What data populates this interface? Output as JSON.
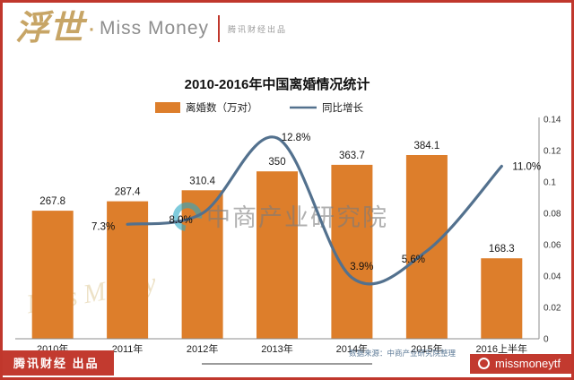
{
  "header": {
    "logo_cn": "浮世",
    "logo_sep": "·",
    "logo_en": "Miss Money",
    "tagline": "腾讯财经出品"
  },
  "chart_data": {
    "type": "bar+line",
    "title": "2010-2016年中国离婚情况统计",
    "categories": [
      "2010年",
      "2011年",
      "2012年",
      "2013年",
      "2014年",
      "2015年",
      "2016上半年"
    ],
    "series": [
      {
        "name": "离婚数（万对）",
        "type": "bar",
        "color": "#DD7E2B",
        "values": [
          267.8,
          287.4,
          310.4,
          350,
          363.7,
          384.1,
          168.3
        ],
        "value_labels": [
          "267.8",
          "287.4",
          "310.4",
          "350",
          "363.7",
          "384.1",
          "168.3"
        ]
      },
      {
        "name": "同比增长",
        "type": "line",
        "color": "#53718E",
        "categories": [
          "2011年",
          "2012年",
          "2013年",
          "2014年",
          "2015年",
          "2016上半年"
        ],
        "values": [
          0.073,
          0.08,
          0.128,
          0.039,
          0.056,
          0.11
        ],
        "value_labels": [
          "7.3%",
          "8.0%",
          "12.8%",
          "3.9%",
          "5.6%",
          "11.0%"
        ]
      }
    ],
    "right_axis": {
      "min": 0,
      "max": 0.14,
      "tick_labels": [
        "0.14",
        "0.12",
        "0.1",
        "0.08",
        "0.06",
        "0.04",
        "0.02",
        "0"
      ]
    },
    "grid": false,
    "legend_position": "top-center"
  },
  "watermark": {
    "name": "中商产业研究院"
  },
  "source_note": "数据来源：中商产业研究院整理",
  "ghost_watermark": "Miss Money",
  "footer": {
    "left_badge": "腾讯财经 出品",
    "right_badge": "missmoneytf"
  }
}
